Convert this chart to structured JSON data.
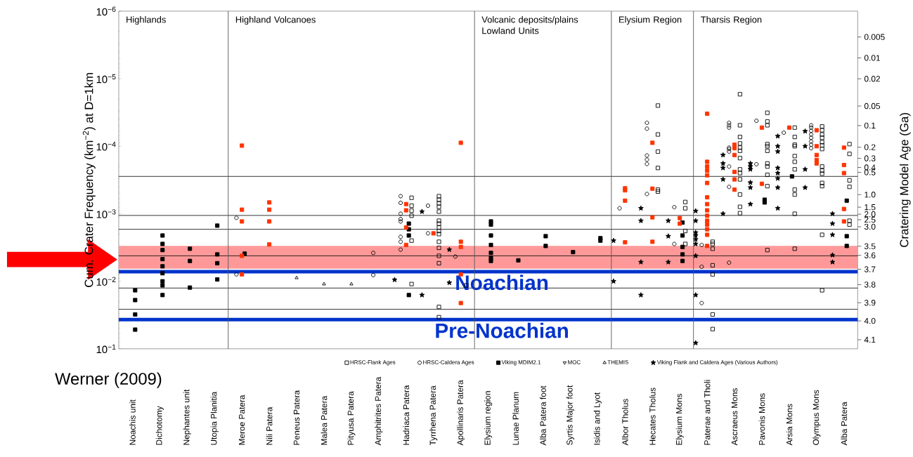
{
  "chart_data": {
    "type": "scatter",
    "xlabel": null,
    "ylabel": "Cum. Crater Frequency (km$^{−2}$) at D=1km",
    "y2label": "Cratering Model Age (Ga)",
    "categories": [
      "Noachis unit",
      "Dichotomy",
      "Nephantes unit",
      "Utopia Planitia",
      "Meroe Patera",
      "Nili Patera",
      "Peneus Patera",
      "Malea Patera",
      "Pityusa Patera",
      "Amphitrites Patera",
      "Hadriaca Patera",
      "Tyrrhena Patera",
      "Apollinaris Patera",
      "Elysium region",
      "Lunae Planum",
      "Alba Patera foot",
      "Syrtis Major foot",
      "Isidis and Lyot",
      "Albor Tholus",
      "Hecates Tholus",
      "Elysium Mons",
      "Paterae and Tholi",
      "Ascraeus Mons",
      "Pavonis Mons",
      "Arsia Mons",
      "Olympus Mons",
      "Alba Patera"
    ],
    "ylim": [
      0.1,
      1e-06
    ],
    "yticks": [
      {
        "value": 1e-06,
        "label": "10$^{−6}$"
      },
      {
        "value": 1e-05,
        "label": "10$^{−5}$"
      },
      {
        "value": 0.0001,
        "label": "10$^{−4}$"
      },
      {
        "value": 0.001,
        "label": "10$^{−3}$"
      },
      {
        "value": 0.01,
        "label": "10$^{−2}$"
      },
      {
        "value": 0.1,
        "label": "10$^{−1}$"
      }
    ],
    "log": "y",
    "legend": "bottom",
    "series": [
      {
        "name": "HRSC-Flank Ages",
        "color": "#000000",
        "marker": "square",
        "x": [
          "Hadriaca Patera",
          "Hadriaca Patera",
          "Hadriaca Patera",
          "Hadriaca Patera",
          "Hadriaca Patera",
          "Hadriaca Patera",
          "Tyrrhena Patera",
          "Tyrrhena Patera",
          "Tyrrhena Patera",
          "Tyrrhena Patera",
          "Tyrrhena Patera",
          "Tyrrhena Patera",
          "Tyrrhena Patera",
          "Tyrrhena Patera",
          "Tyrrhena Patera",
          "Tyrrhena Patera",
          "Tyrrhena Patera",
          "Tyrrhena Patera",
          "Tyrrhena Patera",
          "Tyrrhena Patera",
          "Tyrrhena Patera",
          "Tyrrhena Patera",
          "Apollinaris Patera",
          "Hecates Tholus",
          "Hecates Tholus",
          "Hecates Tholus",
          "Hecates Tholus",
          "Hecates Tholus",
          "Hecates Tholus",
          "Elysium Mons",
          "Elysium Mons",
          "Elysium Mons",
          "Elysium Mons",
          "Paterae and Tholi",
          "Paterae and Tholi",
          "Paterae and Tholi",
          "Paterae and Tholi",
          "Paterae and Tholi",
          "Paterae and Tholi",
          "Paterae and Tholi",
          "Ascraeus Mons",
          "Ascraeus Mons",
          "Ascraeus Mons",
          "Ascraeus Mons",
          "Ascraeus Mons",
          "Ascraeus Mons",
          "Ascraeus Mons",
          "Ascraeus Mons",
          "Ascraeus Mons",
          "Ascraeus Mons",
          "Ascraeus Mons",
          "Ascraeus Mons",
          "Ascraeus Mons",
          "Pavonis Mons",
          "Pavonis Mons",
          "Pavonis Mons",
          "Pavonis Mons",
          "Pavonis Mons",
          "Pavonis Mons",
          "Pavonis Mons",
          "Pavonis Mons",
          "Pavonis Mons",
          "Pavonis Mons",
          "Pavonis Mons",
          "Arsia Mons",
          "Arsia Mons",
          "Arsia Mons",
          "Arsia Mons",
          "Arsia Mons",
          "Arsia Mons",
          "Arsia Mons",
          "Arsia Mons",
          "Arsia Mons",
          "Arsia Mons",
          "Arsia Mons",
          "Olympus Mons",
          "Olympus Mons",
          "Olympus Mons",
          "Olympus Mons",
          "Olympus Mons",
          "Olympus Mons",
          "Olympus Mons",
          "Olympus Mons",
          "Olympus Mons",
          "Olympus Mons",
          "Olympus Mons",
          "Olympus Mons",
          "Olympus Mons",
          "Olympus Mons",
          "Alba Patera",
          "Alba Patera",
          "Alba Patera",
          "Alba Patera",
          "Alba Patera",
          "Alba Patera"
        ],
        "values": [
          0.00058,
          0.00076,
          0.0009,
          0.00107,
          0.0025,
          0.011,
          0.00055,
          0.00062,
          0.0007,
          0.00079,
          0.00093,
          0.00127,
          0.0014,
          0.0016,
          0.0018,
          0.002,
          0.0026,
          0.0032,
          0.0042,
          0.0054,
          0.024,
          0.034,
          0.0115,
          2.5e-05,
          6.7e-05,
          0.00012,
          0.00021,
          0.00044,
          0.00047,
          0.00067,
          0.00083,
          0.0018,
          0.0028,
          0.0026,
          0.0028,
          0.0033,
          0.0058,
          0.0079,
          0.031,
          0.051,
          1.7e-05,
          4.9e-05,
          7.3e-05,
          9.1e-05,
          0.000105,
          0.000117,
          0.00015,
          0.00022,
          0.00025,
          0.00031,
          0.00052,
          0.00079,
          0.00098,
          3.2e-05,
          4.3e-05,
          4.9e-05,
          9.3e-05,
          0.0001,
          0.000117,
          0.00018,
          0.0002,
          0.000265,
          0.00039,
          0.00345,
          5.3e-05,
          7.3e-05,
          9.5e-05,
          0.0001,
          0.00014,
          0.00017,
          0.00022,
          0.00044,
          0.00052,
          0.001,
          0.0033,
          5.1e-05,
          5.8e-05,
          6.7e-05,
          7.5e-05,
          8.7e-05,
          9.7e-05,
          0.00011,
          0.0002,
          0.00023,
          0.000255,
          0.00035,
          0.00039,
          0.00205,
          0.0136,
          9.3e-05,
          0.00013,
          0.00032,
          0.0004,
          0.00127,
          0.00145
        ]
      },
      {
        "name": "HRSC-Caldera Ages",
        "color": "#000000",
        "marker": "circle",
        "x": [
          "Meroe Patera",
          "Meroe Patera",
          "Amphitrites Patera",
          "Amphitrites Patera",
          "Hadriaca Patera",
          "Hadriaca Patera",
          "Hadriaca Patera",
          "Hadriaca Patera",
          "Hadriaca Patera",
          "Hadriaca Patera",
          "Hadriaca Patera",
          "Hadriaca Patera",
          "Tyrrhena Patera",
          "Tyrrhena Patera",
          "Apollinaris Patera",
          "Albor Tholus",
          "Hecates Tholus",
          "Hecates Tholus",
          "Hecates Tholus",
          "Hecates Tholus",
          "Hecates Tholus",
          "Hecates Tholus",
          "Elysium Mons",
          "Elysium Mons",
          "Paterae and Tholi",
          "Paterae and Tholi",
          "Paterae and Tholi",
          "Ascraeus Mons",
          "Ascraeus Mons",
          "Ascraeus Mons",
          "Ascraeus Mons",
          "Ascraeus Mons",
          "Ascraeus Mons",
          "Ascraeus Mons",
          "Ascraeus Mons",
          "Ascraeus Mons",
          "Pavonis Mons",
          "Pavonis Mons",
          "Arsia Mons",
          "Olympus Mons",
          "Olympus Mons",
          "Olympus Mons",
          "Olympus Mons",
          "Olympus Mons",
          "Olympus Mons",
          "Olympus Mons",
          "Olympus Mons"
        ],
        "values": [
          0.00115,
          0.0079,
          0.0038,
          0.0081,
          0.00055,
          0.00069,
          0.001,
          0.0012,
          0.0013,
          0.0022,
          0.0026,
          0.0034,
          0.00076,
          0.00195,
          0.0043,
          0.00083,
          4.5e-05,
          5.5e-05,
          0.000137,
          0.000158,
          0.000183,
          0.00051,
          0.0008,
          0.0028,
          0.0029,
          0.0061,
          0.021,
          4.5e-05,
          4.9e-05,
          5.3e-05,
          0.000105,
          0.00011,
          0.00012,
          0.0002,
          0.0004,
          0.0053,
          4.2e-05,
          0.000185,
          6.3e-05,
          4.9e-05,
          5.3e-05,
          5.9e-05,
          6.7e-05,
          7.5e-05,
          8.5e-05,
          9.5e-05,
          0.000107
        ]
      },
      {
        "name": "Viking MDIM2.1",
        "color": "#000000",
        "marker": "square",
        "x": [
          "Noachis unit",
          "Noachis unit",
          "Noachis unit",
          "Noachis unit",
          "Dichotomy",
          "Dichotomy",
          "Dichotomy",
          "Dichotomy",
          "Dichotomy",
          "Dichotomy",
          "Dichotomy",
          "Dichotomy",
          "Dichotomy",
          "Nephantes unit",
          "Nephantes unit",
          "Nephantes unit",
          "Utopia Planitia",
          "Utopia Planitia",
          "Utopia Planitia",
          "Utopia Planitia",
          "Meroe Patera",
          "Hadriaca Patera",
          "Hadriaca Patera",
          "Hadriaca Patera",
          "Hadriaca Patera",
          "Elysium region",
          "Elysium region",
          "Elysium region",
          "Elysium region",
          "Elysium region",
          "Elysium region",
          "Elysium region",
          "Lunae Planum",
          "Alba Patera foot",
          "Alba Patera foot",
          "Syrtis Major foot",
          "Isidis and Lyot",
          "Isidis and Lyot",
          "Elysium Mons",
          "Elysium Mons",
          "Elysium Mons",
          "Elysium Mons",
          "Elysium Mons",
          "Pavonis Mons",
          "Pavonis Mons",
          "Arsia Mons",
          "Alba Patera",
          "Alba Patera",
          "Alba Patera"
        ],
        "values": [
          0.0136,
          0.019,
          0.031,
          0.052,
          0.0021,
          0.0028,
          0.00345,
          0.0047,
          0.006,
          0.0076,
          0.01,
          0.0115,
          0.016,
          0.0033,
          0.005,
          0.0124,
          0.0015,
          0.004,
          0.0054,
          0.0094,
          0.0039,
          0.0014,
          0.0017,
          0.0021,
          0.016,
          0.0013,
          0.00145,
          0.0021,
          0.0029,
          0.0038,
          0.0045,
          0.005,
          0.0049,
          0.00215,
          0.003,
          0.0037,
          0.0023,
          0.0025,
          0.00135,
          0.0021,
          0.0031,
          0.004,
          0.005,
          0.00062,
          0.00068,
          0.00028,
          0.00064,
          0.00215,
          0.003
        ]
      },
      {
        "name": "MOC",
        "color": "#000000",
        "marker": "triangle down",
        "values": [
          null,
          null,
          null,
          null,
          null,
          null,
          null,
          null,
          null,
          null,
          null,
          null,
          null,
          null,
          null,
          null,
          null,
          null,
          null,
          null,
          null,
          null,
          null,
          null,
          null,
          null,
          null
        ]
      },
      {
        "name": "THEMIS",
        "color": "#000000",
        "marker": "triangle",
        "x": [
          "Peneus Patera",
          "Malea Patera",
          "Pityusa Patera"
        ],
        "values": [
          0.0089,
          0.011,
          0.011
        ]
      },
      {
        "name": "Viking Flank and Caldera Ages (Various Authors)",
        "color": "#000000",
        "marker": "star",
        "x": [
          "Hadriaca Patera",
          "Tyrrhena Patera",
          "Tyrrhena Patera",
          "Apollinaris Patera",
          "Apollinaris Patera",
          "Albor Tholus",
          "Albor Tholus",
          "Hecates Tholus",
          "Hecates Tholus",
          "Hecates Tholus",
          "Hecates Tholus",
          "Elysium Mons",
          "Elysium Mons",
          "Elysium Mons",
          "Paterae and Tholi",
          "Paterae and Tholi",
          "Paterae and Tholi",
          "Paterae and Tholi",
          "Paterae and Tholi",
          "Paterae and Tholi",
          "Paterae and Tholi",
          "Paterae and Tholi",
          "Paterae and Tholi",
          "Ascraeus Mons",
          "Ascraeus Mons",
          "Ascraeus Mons",
          "Ascraeus Mons",
          "Ascraeus Mons",
          "Pavonis Mons",
          "Pavonis Mons",
          "Pavonis Mons",
          "Pavonis Mons",
          "Pavonis Mons",
          "Pavonis Mons",
          "Arsia Mons",
          "Arsia Mons",
          "Arsia Mons",
          "Arsia Mons",
          "Arsia Mons",
          "Arsia Mons",
          "Arsia Mons",
          "Arsia Mons",
          "Olympus Mons",
          "Olympus Mons",
          "Olympus Mons",
          "Olympus Mons",
          "Alba Patera",
          "Alba Patera",
          "Alba Patera",
          "Alba Patera",
          "Alba Patera"
        ],
        "values": [
          0.0095,
          0.00093,
          0.016,
          0.0034,
          0.0105,
          0.0025,
          0.01,
          0.00083,
          0.00127,
          0.0052,
          0.016,
          0.00127,
          0.00215,
          0.0052,
          0.00091,
          0.00127,
          0.0019,
          0.0021,
          0.0024,
          0.0028,
          0.0042,
          0.016,
          0.082,
          0.000135,
          0.00018,
          0.00021,
          0.00031,
          0.001,
          0.00018,
          0.0002,
          0.00022,
          0.000345,
          0.00041,
          0.00072,
          7.1e-05,
          0.0001,
          0.00012,
          0.00021,
          0.00025,
          0.0003,
          0.00041,
          0.00083,
          6e-05,
          0.0001,
          0.00022,
          0.00041,
          0.001,
          0.0014,
          0.00205,
          0.0041,
          0.0052
        ]
      },
      {
        "color": "#ff3300",
        "marker": "square",
        "x": [
          "Meroe Patera",
          "Meroe Patera",
          "Meroe Patera",
          "Meroe Patera",
          "Meroe Patera",
          "Nili Patera",
          "Nili Patera",
          "Nili Patera",
          "Nili Patera",
          "Hadriaca Patera",
          "Hadriaca Patera",
          "Hadriaca Patera",
          "Hadriaca Patera",
          "Tyrrhena Patera",
          "Apollinaris Patera",
          "Apollinaris Patera",
          "Apollinaris Patera",
          "Apollinaris Patera",
          "Apollinaris Patera",
          "Albor Tholus",
          "Albor Tholus",
          "Albor Tholus",
          "Albor Tholus",
          "Hecates Tholus",
          "Hecates Tholus",
          "Hecates Tholus",
          "Hecates Tholus",
          "Elysium Mons",
          "Elysium Mons",
          "Paterae and Tholi",
          "Paterae and Tholi",
          "Paterae and Tholi",
          "Paterae and Tholi",
          "Paterae and Tholi",
          "Paterae and Tholi",
          "Paterae and Tholi",
          "Paterae and Tholi",
          "Paterae and Tholi",
          "Paterae and Tholi",
          "Paterae and Tholi",
          "Paterae and Tholi",
          "Paterae and Tholi",
          "Paterae and Tholi",
          "Paterae and Tholi",
          "Ascraeus Mons",
          "Ascraeus Mons",
          "Ascraeus Mons",
          "Ascraeus Mons",
          "Ascraeus Mons",
          "Ascraeus Mons",
          "Pavonis Mons",
          "Pavonis Mons",
          "Arsia Mons",
          "Olympus Mons",
          "Olympus Mons",
          "Olympus Mons",
          "Olympus Mons",
          "Olympus Mons",
          "Alba Patera",
          "Alba Patera",
          "Alba Patera",
          "Alba Patera",
          "Alba Patera"
        ],
        "values": [
          9.8e-05,
          0.00087,
          0.0013,
          0.0042,
          0.0079,
          0.00068,
          0.00087,
          0.0013,
          0.00285,
          0.00072,
          0.00089,
          0.0016,
          0.0029,
          0.00195,
          8.9e-05,
          0.0026,
          0.0031,
          0.0079,
          0.021,
          0.00042,
          0.00045,
          0.00064,
          0.00265,
          8.9e-05,
          0.000425,
          0.00113,
          0.0026,
          0.00116,
          0.0014,
          3.3e-05,
          0.00017,
          0.0002,
          0.00023,
          0.00027,
          0.00035,
          0.00057,
          0.00072,
          0.00089,
          0.00107,
          0.00127,
          0.00145,
          0.0017,
          0.00205,
          0.003,
          9.5e-05,
          0.000107,
          0.000135,
          0.00024,
          0.00031,
          0.00044,
          5.3e-05,
          0.00036,
          5.3e-05,
          5.8e-05,
          0.0001,
          0.000135,
          0.00016,
          0.00018,
          0.000105,
          0.00019,
          0.00025,
          0.00085,
          0.0013
        ]
      }
    ],
    "ref_lines": [
      {
        "axis": "y",
        "value": 0.00028
      },
      {
        "axis": "y",
        "value": 0.00106
      },
      {
        "axis": "y",
        "value": 0.0017
      },
      {
        "axis": "y",
        "value": 0.0042
      },
      {
        "axis": "y",
        "value": 0.0126
      },
      {
        "axis": "y",
        "value": 0.026
      },
      {
        "axis": "y",
        "value": 0.0072,
        "color": "#0033cc",
        "label": "Noachian"
      },
      {
        "axis": "y",
        "value": 0.037,
        "color": "#0033cc",
        "label": "Pre-Noachian"
      }
    ],
    "bands": [
      {
        "axis": "y",
        "from": 0.003,
        "to": 0.0065,
        "color": "#ff9999"
      }
    ],
    "annotations": [
      "Werner (2009)",
      "Highlands",
      "Highland Volcanoes",
      "Volcanic deposits/plains Lowland Units",
      "Elysium Region",
      "Tharsis Region",
      "0.005",
      "0.01",
      "0.02",
      "0.05",
      "0.1",
      "0.2",
      "0.3",
      "0.4",
      "0.5",
      "1.0",
      "1.5",
      "2.0",
      "2.5",
      "3.0",
      "3.5",
      "3.6",
      "3.7",
      "3.8",
      "3.9",
      "4.0",
      "4.1"
    ]
  }
}
